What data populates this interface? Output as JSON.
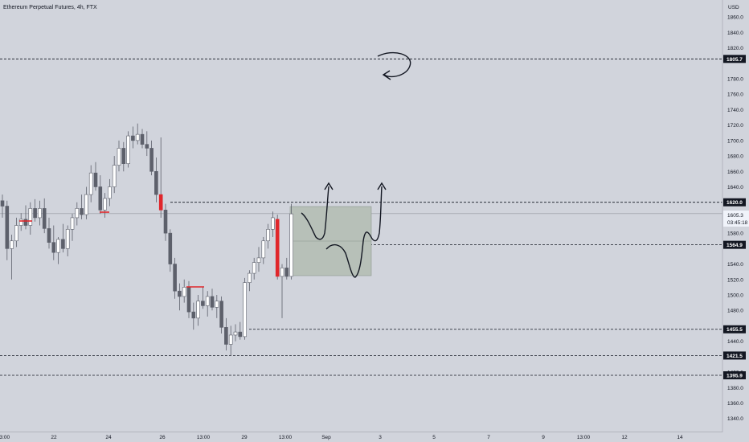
{
  "header": {
    "title": "Ethereum Perpetual Futures, 4h, FTX"
  },
  "price_axis": {
    "unit_label": "USD",
    "ticks": [
      "1860.0",
      "1840.0",
      "1820.0",
      "1780.0",
      "1760.0",
      "1740.0",
      "1720.0",
      "1700.0",
      "1680.0",
      "1660.0",
      "1640.0",
      "1600.0",
      "1580.0",
      "1540.0",
      "1520.0",
      "1500.0",
      "1480.0",
      "1440.0",
      "1400.0",
      "1380.0",
      "1360.0",
      "1340.0"
    ],
    "last_price": {
      "value": "1605.3",
      "countdown": "03:45:18"
    },
    "level_labels": [
      "1805.7",
      "1620.0",
      "1564.9",
      "1455.5",
      "1421.5",
      "1395.9"
    ]
  },
  "time_axis": {
    "labels": [
      "13:00",
      "22",
      "24",
      "26",
      "13:00",
      "29",
      "13:00",
      "Sep",
      "3",
      "5",
      "7",
      "9",
      "13:00",
      "12",
      "14"
    ]
  },
  "colors": {
    "background": "#d1d4dc",
    "bear": "#5d606b",
    "bull": "#ffffff",
    "highlight": "#e0262b",
    "line": "#131722"
  },
  "chart_data": {
    "type": "candlestick",
    "title": "Ethereum Perpetual Futures, 4h, FTX",
    "y_axis_unit": "USD",
    "ylim": [
      1322,
      1882
    ],
    "horizontal_levels": [
      1805.7,
      1620.0,
      1564.9,
      1455.5,
      1421.5,
      1395.9
    ],
    "last_price": 1605.3,
    "candles": [
      {
        "o": 1622,
        "h": 1630,
        "l": 1600,
        "c": 1615
      },
      {
        "o": 1615,
        "h": 1622,
        "l": 1545,
        "c": 1560
      },
      {
        "o": 1560,
        "h": 1578,
        "l": 1520,
        "c": 1570
      },
      {
        "o": 1570,
        "h": 1600,
        "l": 1562,
        "c": 1590
      },
      {
        "o": 1590,
        "h": 1606,
        "l": 1583,
        "c": 1598
      },
      {
        "o": 1598,
        "h": 1616,
        "l": 1585,
        "c": 1590
      },
      {
        "o": 1590,
        "h": 1620,
        "l": 1578,
        "c": 1612
      },
      {
        "o": 1612,
        "h": 1624,
        "l": 1595,
        "c": 1600
      },
      {
        "o": 1600,
        "h": 1622,
        "l": 1590,
        "c": 1612
      },
      {
        "o": 1612,
        "h": 1625,
        "l": 1580,
        "c": 1586
      },
      {
        "o": 1586,
        "h": 1600,
        "l": 1560,
        "c": 1568
      },
      {
        "o": 1568,
        "h": 1590,
        "l": 1545,
        "c": 1555
      },
      {
        "o": 1555,
        "h": 1575,
        "l": 1540,
        "c": 1572
      },
      {
        "o": 1572,
        "h": 1592,
        "l": 1555,
        "c": 1560
      },
      {
        "o": 1560,
        "h": 1590,
        "l": 1550,
        "c": 1585
      },
      {
        "o": 1585,
        "h": 1605,
        "l": 1570,
        "c": 1600
      },
      {
        "o": 1600,
        "h": 1620,
        "l": 1590,
        "c": 1612
      },
      {
        "o": 1612,
        "h": 1630,
        "l": 1598,
        "c": 1604
      },
      {
        "o": 1604,
        "h": 1640,
        "l": 1598,
        "c": 1630
      },
      {
        "o": 1630,
        "h": 1668,
        "l": 1620,
        "c": 1658
      },
      {
        "o": 1658,
        "h": 1672,
        "l": 1635,
        "c": 1640
      },
      {
        "o": 1640,
        "h": 1655,
        "l": 1605,
        "c": 1610
      },
      {
        "o": 1610,
        "h": 1632,
        "l": 1600,
        "c": 1625
      },
      {
        "o": 1625,
        "h": 1650,
        "l": 1615,
        "c": 1640
      },
      {
        "o": 1640,
        "h": 1680,
        "l": 1632,
        "c": 1668
      },
      {
        "o": 1668,
        "h": 1700,
        "l": 1660,
        "c": 1690
      },
      {
        "o": 1690,
        "h": 1698,
        "l": 1660,
        "c": 1670
      },
      {
        "o": 1670,
        "h": 1712,
        "l": 1665,
        "c": 1706
      },
      {
        "o": 1706,
        "h": 1718,
        "l": 1690,
        "c": 1700
      },
      {
        "o": 1700,
        "h": 1722,
        "l": 1695,
        "c": 1708
      },
      {
        "o": 1708,
        "h": 1715,
        "l": 1690,
        "c": 1695
      },
      {
        "o": 1695,
        "h": 1712,
        "l": 1680,
        "c": 1690
      },
      {
        "o": 1690,
        "h": 1700,
        "l": 1655,
        "c": 1660
      },
      {
        "o": 1660,
        "h": 1678,
        "l": 1620,
        "c": 1630
      },
      {
        "o": 1630,
        "h": 1704,
        "l": 1600,
        "c": 1610
      },
      {
        "o": 1610,
        "h": 1618,
        "l": 1570,
        "c": 1580
      },
      {
        "o": 1580,
        "h": 1585,
        "l": 1530,
        "c": 1540
      },
      {
        "o": 1540,
        "h": 1548,
        "l": 1495,
        "c": 1505
      },
      {
        "o": 1505,
        "h": 1515,
        "l": 1480,
        "c": 1498
      },
      {
        "o": 1498,
        "h": 1520,
        "l": 1490,
        "c": 1510
      },
      {
        "o": 1510,
        "h": 1518,
        "l": 1470,
        "c": 1478
      },
      {
        "o": 1478,
        "h": 1490,
        "l": 1455,
        "c": 1470
      },
      {
        "o": 1470,
        "h": 1500,
        "l": 1460,
        "c": 1492
      },
      {
        "o": 1492,
        "h": 1510,
        "l": 1482,
        "c": 1486
      },
      {
        "o": 1486,
        "h": 1505,
        "l": 1472,
        "c": 1498
      },
      {
        "o": 1498,
        "h": 1508,
        "l": 1480,
        "c": 1484
      },
      {
        "o": 1484,
        "h": 1500,
        "l": 1470,
        "c": 1492
      },
      {
        "o": 1492,
        "h": 1498,
        "l": 1450,
        "c": 1458
      },
      {
        "o": 1458,
        "h": 1470,
        "l": 1428,
        "c": 1436
      },
      {
        "o": 1436,
        "h": 1460,
        "l": 1421,
        "c": 1448
      },
      {
        "o": 1448,
        "h": 1462,
        "l": 1440,
        "c": 1452
      },
      {
        "o": 1452,
        "h": 1465,
        "l": 1442,
        "c": 1446
      },
      {
        "o": 1446,
        "h": 1522,
        "l": 1442,
        "c": 1516
      },
      {
        "o": 1516,
        "h": 1532,
        "l": 1505,
        "c": 1528
      },
      {
        "o": 1528,
        "h": 1548,
        "l": 1520,
        "c": 1542
      },
      {
        "o": 1542,
        "h": 1562,
        "l": 1530,
        "c": 1548
      },
      {
        "o": 1548,
        "h": 1575,
        "l": 1540,
        "c": 1570
      },
      {
        "o": 1570,
        "h": 1592,
        "l": 1560,
        "c": 1585
      },
      {
        "o": 1585,
        "h": 1608,
        "l": 1575,
        "c": 1600
      },
      {
        "o": 1598,
        "h": 1604,
        "l": 1520,
        "c": 1524
      },
      {
        "o": 1524,
        "h": 1540,
        "l": 1470,
        "c": 1535
      },
      {
        "o": 1535,
        "h": 1548,
        "l": 1520,
        "c": 1524
      },
      {
        "o": 1524,
        "h": 1618,
        "l": 1520,
        "c": 1605
      }
    ],
    "highlighted_candles": [
      34,
      59
    ]
  }
}
